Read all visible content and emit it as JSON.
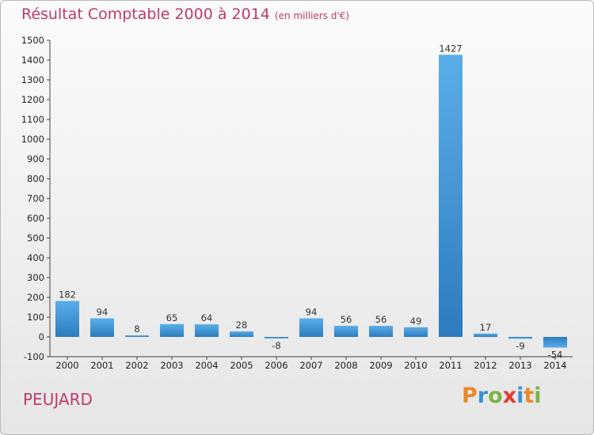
{
  "header": {
    "title": "Résultat Comptable 2000 à 2014",
    "unit": "(en milliers d'€)"
  },
  "commune": "PEUJARD",
  "logo": {
    "letters": [
      "P",
      "r",
      "o",
      "x",
      "i",
      "t",
      "i"
    ],
    "colors": [
      "#e8892b",
      "#3f8fd1",
      "#7cb342",
      "#e53935",
      "#3f8fd1",
      "#e8892b",
      "#7cb342"
    ]
  },
  "colors": {
    "title": "#c0396e",
    "bar_light": "#5aaee8",
    "bar_dark": "#2c7cbf"
  },
  "chart_data": {
    "type": "bar",
    "title": "Résultat Comptable 2000 à 2014",
    "subtitle": "(en milliers d'€)",
    "categories": [
      "2000",
      "2001",
      "2002",
      "2003",
      "2004",
      "2005",
      "2006",
      "2007",
      "2008",
      "2009",
      "2010",
      "2011",
      "2012",
      "2013",
      "2014"
    ],
    "values": [
      182,
      94,
      8,
      65,
      64,
      28,
      -8,
      94,
      56,
      56,
      49,
      1427,
      17,
      -9,
      -54
    ],
    "ylim": [
      -100,
      1500
    ],
    "yticks": [
      -100,
      0,
      100,
      200,
      300,
      400,
      500,
      600,
      700,
      800,
      900,
      1000,
      1100,
      1200,
      1300,
      1400,
      1500
    ],
    "grid": false,
    "legend": "none"
  }
}
